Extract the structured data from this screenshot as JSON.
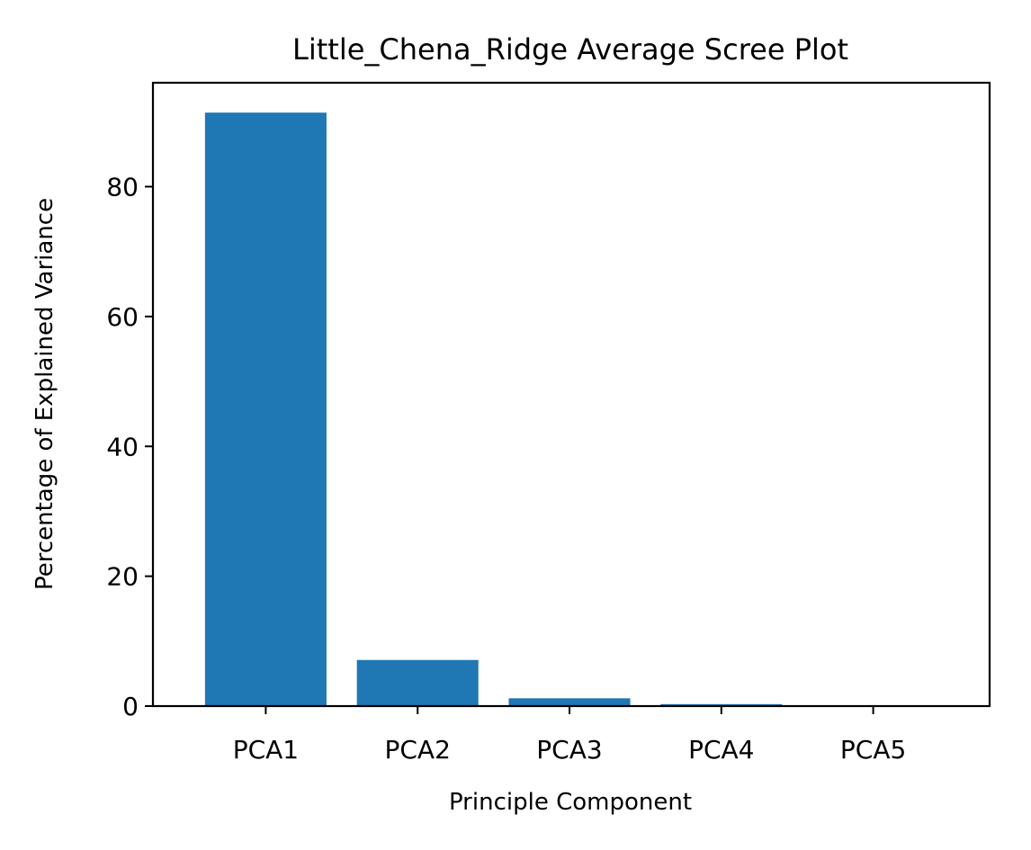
{
  "chart_data": {
    "type": "bar",
    "title": "Little_Chena_Ridge Average Scree Plot",
    "xlabel": "Principle Component",
    "ylabel": "Percentage of Explained Variance",
    "categories": [
      "PCA1",
      "PCA2",
      "PCA3",
      "PCA4",
      "PCA5"
    ],
    "values": [
      91.4,
      7.1,
      1.2,
      0.3,
      0.1
    ],
    "ylim": [
      0,
      96
    ],
    "yticks": [
      0,
      20,
      40,
      60,
      80
    ],
    "grid": false,
    "legend": "none",
    "bar_color": "#1f77b4"
  }
}
